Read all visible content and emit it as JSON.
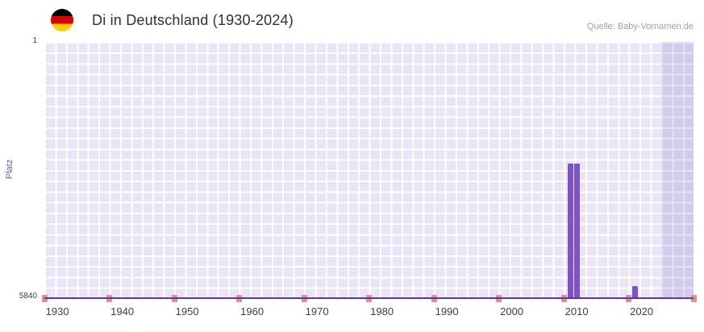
{
  "header": {
    "title": "Di in Deutschland (1930-2024)",
    "source": "Quelle: Baby-Vornamen.de"
  },
  "chart_data": {
    "type": "bar",
    "title": "Di in Deutschland (1930-2024)",
    "ylabel": "Platz",
    "xlabel": "",
    "x_range": [
      1928,
      2028
    ],
    "x_ticks": [
      1930,
      1940,
      1950,
      1960,
      1970,
      1980,
      1990,
      2000,
      2010,
      2020
    ],
    "y_axis": {
      "min": 1,
      "max": 5840,
      "inverted": true,
      "label_top": "1",
      "label_bottom": "5840"
    },
    "bars": [
      {
        "year": 2009,
        "rank": 2780
      },
      {
        "year": 2010,
        "rank": 2780
      },
      {
        "year": 2019,
        "rank": 5570
      }
    ],
    "axis_marker_years": [
      1928,
      1938,
      1948,
      1958,
      1968,
      1978,
      1988,
      1998,
      2008,
      2018,
      2028
    ],
    "highlight_band": {
      "from_year": 2023,
      "to_year": 2028
    },
    "grid": true,
    "legend": false,
    "colors": {
      "bar": "#7e52c9",
      "axis_marker": "#e28f8f",
      "axis_line": "#5e35b1",
      "grid_cell": "#e9e5f7",
      "band_overlay": "rgba(110,86,175,0.18)",
      "tick_text": "#3a3a64",
      "axis_label_text": "#6e56b4",
      "title_text": "#303030",
      "source_text": "#97a1a8",
      "flag_black": "#000000",
      "flag_red": "#dd0000",
      "flag_gold": "#ffce00"
    }
  }
}
